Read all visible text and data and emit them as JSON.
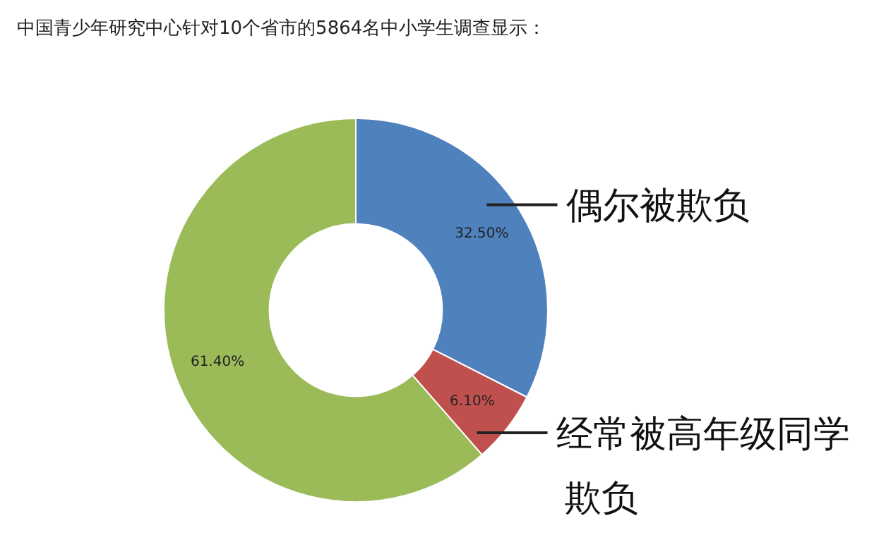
{
  "chart_data": {
    "type": "donut",
    "title": "中国青少年研究中心针对10个省市的5864名中小学生调查显示：",
    "categories": [
      "偶尔被欺负",
      "经常被高年级同学欺负",
      null
    ],
    "values": [
      32.5,
      6.1,
      61.4
    ],
    "colors": [
      "#4f81bd",
      "#c0504d",
      "#9bbb59"
    ],
    "value_labels": [
      "32.50%",
      "6.10%",
      "61.40%"
    ]
  }
}
